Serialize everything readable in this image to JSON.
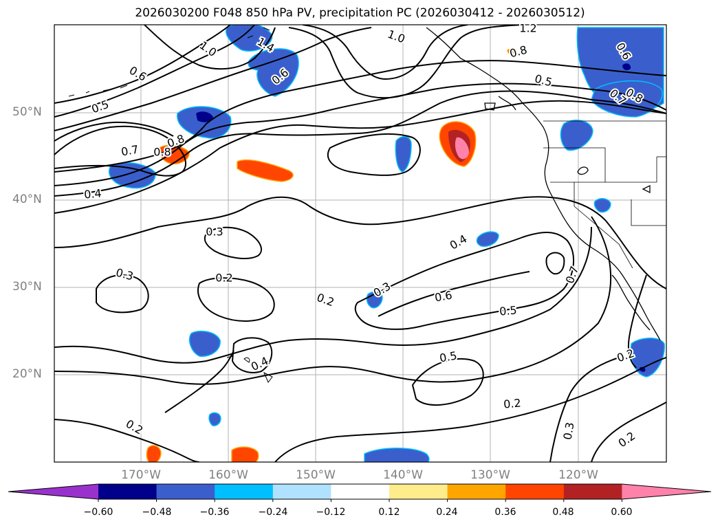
{
  "title": "2026030200 F048 850 hPa PV, precipitation PC (2026030412 - 2026030512)",
  "colors": {
    "coast": "#000000",
    "contour": "#000000",
    "grid": "#b0b0b0",
    "axis_label": "#808080"
  },
  "map": {
    "latitude_labels": [
      "50°N",
      "40°N",
      "30°N",
      "20°N"
    ],
    "longitude_labels": [
      "170°W",
      "160°W",
      "150°W",
      "140°W",
      "130°W",
      "120°W"
    ]
  },
  "contour_labels": [
    {
      "text": "1.2"
    },
    {
      "text": "1.0"
    },
    {
      "text": "1.0"
    },
    {
      "text": "1.4"
    },
    {
      "text": "0.6"
    },
    {
      "text": "0.6"
    },
    {
      "text": "0.5"
    },
    {
      "text": "0.8"
    },
    {
      "text": "0.7"
    },
    {
      "text": "0.8"
    },
    {
      "text": "0.4"
    },
    {
      "text": "0.8"
    },
    {
      "text": "0.5"
    },
    {
      "text": "0.6"
    },
    {
      "text": "0.8"
    },
    {
      "text": "0.7"
    },
    {
      "text": "0.3"
    },
    {
      "text": "0.3"
    },
    {
      "text": "0.2"
    },
    {
      "text": "0.2"
    },
    {
      "text": "0.3"
    },
    {
      "text": "0.4"
    },
    {
      "text": "0.6"
    },
    {
      "text": "0.5"
    },
    {
      "text": "0.7"
    },
    {
      "text": "0.5"
    },
    {
      "text": "0.4"
    },
    {
      "text": "0.2"
    },
    {
      "text": "0.2"
    },
    {
      "text": "0.2"
    },
    {
      "text": "0.3"
    },
    {
      "text": "0.2"
    }
  ],
  "colorbar": {
    "ticks": [
      "−0.60",
      "−0.48",
      "−0.36",
      "−0.24",
      "−0.12",
      "0.12",
      "0.24",
      "0.36",
      "0.48",
      "0.60"
    ],
    "colors": [
      "#9932cc",
      "#00008b",
      "#3a5fcd",
      "#00bfff",
      "#b0e2ff",
      "#ffffff",
      "#ffec8b",
      "#ffa500",
      "#ff4500",
      "#b22222",
      "#ff82ab"
    ]
  }
}
